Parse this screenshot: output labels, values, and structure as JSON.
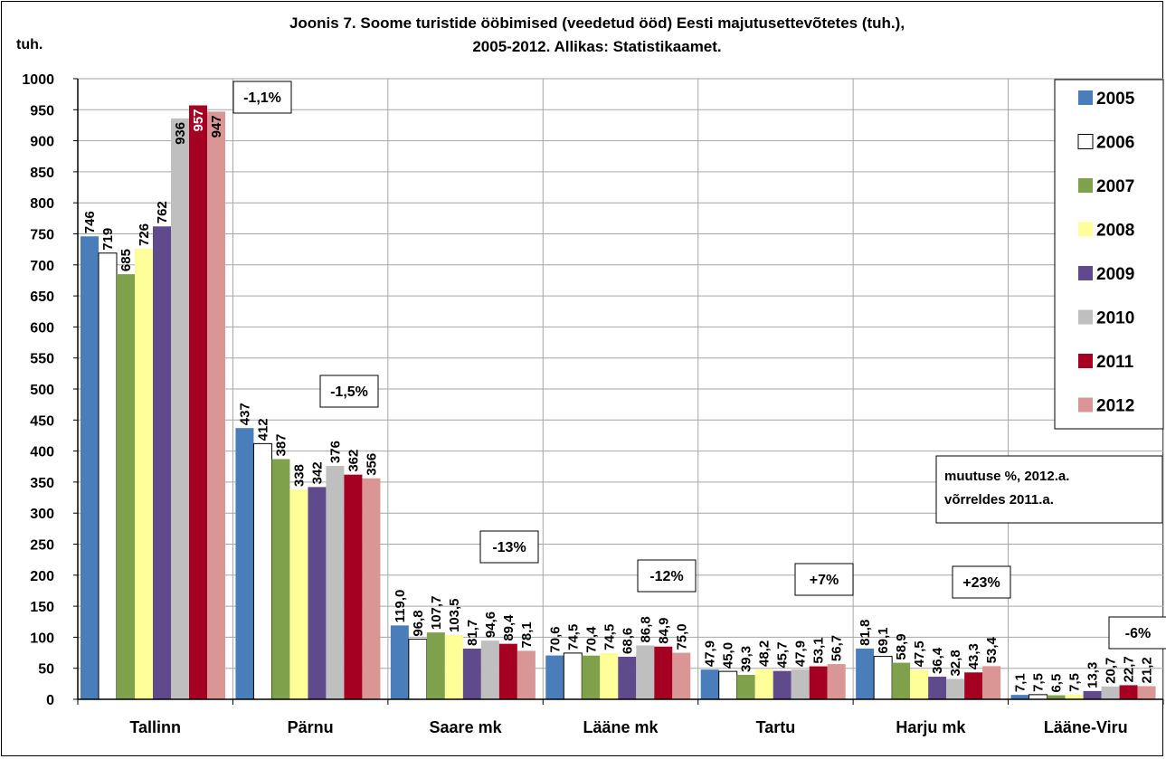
{
  "chart_data": {
    "type": "bar",
    "title_lines": [
      "Joonis 7. Soome turistide ööbimised (veedetud ööd) Eesti majutusettevõtetes (tuh.),",
      "2005-2012. Allikas: Statistikaamet."
    ],
    "ylabel": "tuh.",
    "xlabel": "",
    "ylim": [
      0,
      1000
    ],
    "ytick_step": 50,
    "grid": true,
    "legend_position": "right",
    "categories": [
      "Tallinn",
      "Pärnu",
      "Saare mk",
      "Lääne mk",
      "Tartu",
      "Harju mk",
      "Lääne-Viru"
    ],
    "series": [
      {
        "name": "2005",
        "color": "#4A7EBB",
        "values": [
          746,
          437,
          119.0,
          70.6,
          47.9,
          81.8,
          7.1
        ],
        "labels": [
          "746",
          "437",
          "119,0",
          "70,6",
          "47,9",
          "81,8",
          "7,1"
        ]
      },
      {
        "name": "2006",
        "color": "#FFFFFF",
        "values": [
          719,
          412,
          96.8,
          74.5,
          45.0,
          69.1,
          7.5
        ],
        "labels": [
          "719",
          "412",
          "96,8",
          "74,5",
          "45,0",
          "69,1",
          "7,5"
        ]
      },
      {
        "name": "2007",
        "color": "#7FA14B",
        "values": [
          685,
          387,
          107.7,
          70.4,
          39.3,
          58.9,
          6.5
        ],
        "labels": [
          "685",
          "387",
          "107,7",
          "70,4",
          "39,3",
          "58,9",
          "6,5"
        ]
      },
      {
        "name": "2008",
        "color": "#FFFF99",
        "values": [
          726,
          338,
          103.5,
          74.5,
          48.2,
          47.5,
          7.5
        ],
        "labels": [
          "726",
          "338",
          "103,5",
          "74,5",
          "48,2",
          "47,5",
          "7,5"
        ]
      },
      {
        "name": "2009",
        "color": "#5F4B8B",
        "values": [
          762,
          342,
          81.7,
          68.6,
          45.7,
          36.4,
          13.3
        ],
        "labels": [
          "762",
          "342",
          "81,7",
          "68,6",
          "45,7",
          "36,4",
          "13,3"
        ]
      },
      {
        "name": "2010",
        "color": "#BFBFBF",
        "values": [
          936,
          376,
          94.6,
          86.8,
          47.9,
          32.8,
          20.7
        ],
        "labels": [
          "936",
          "376",
          "94,6",
          "86,8",
          "47,9",
          "32,8",
          "20,7"
        ]
      },
      {
        "name": "2011",
        "color": "#A50021",
        "values": [
          957,
          362,
          89.4,
          84.9,
          53.1,
          43.3,
          22.7
        ],
        "labels": [
          "957",
          "362",
          "89,4",
          "84,9",
          "53,1",
          "43,3",
          "22,7"
        ]
      },
      {
        "name": "2012",
        "color": "#D99694",
        "values": [
          947,
          356,
          78.1,
          75.0,
          56.7,
          53.4,
          21.2
        ],
        "labels": [
          "947",
          "356",
          "78,1",
          "75,0",
          "56,7",
          "53,4",
          "21,2"
        ]
      }
    ],
    "change_annotations": [
      "-1,1%",
      "-1,5%",
      "-13%",
      "-12%",
      "+7%",
      "+23%",
      "-6%"
    ],
    "note_lines": [
      "muutuse %, 2012.a.",
      "võrreldes 2011.a."
    ]
  }
}
